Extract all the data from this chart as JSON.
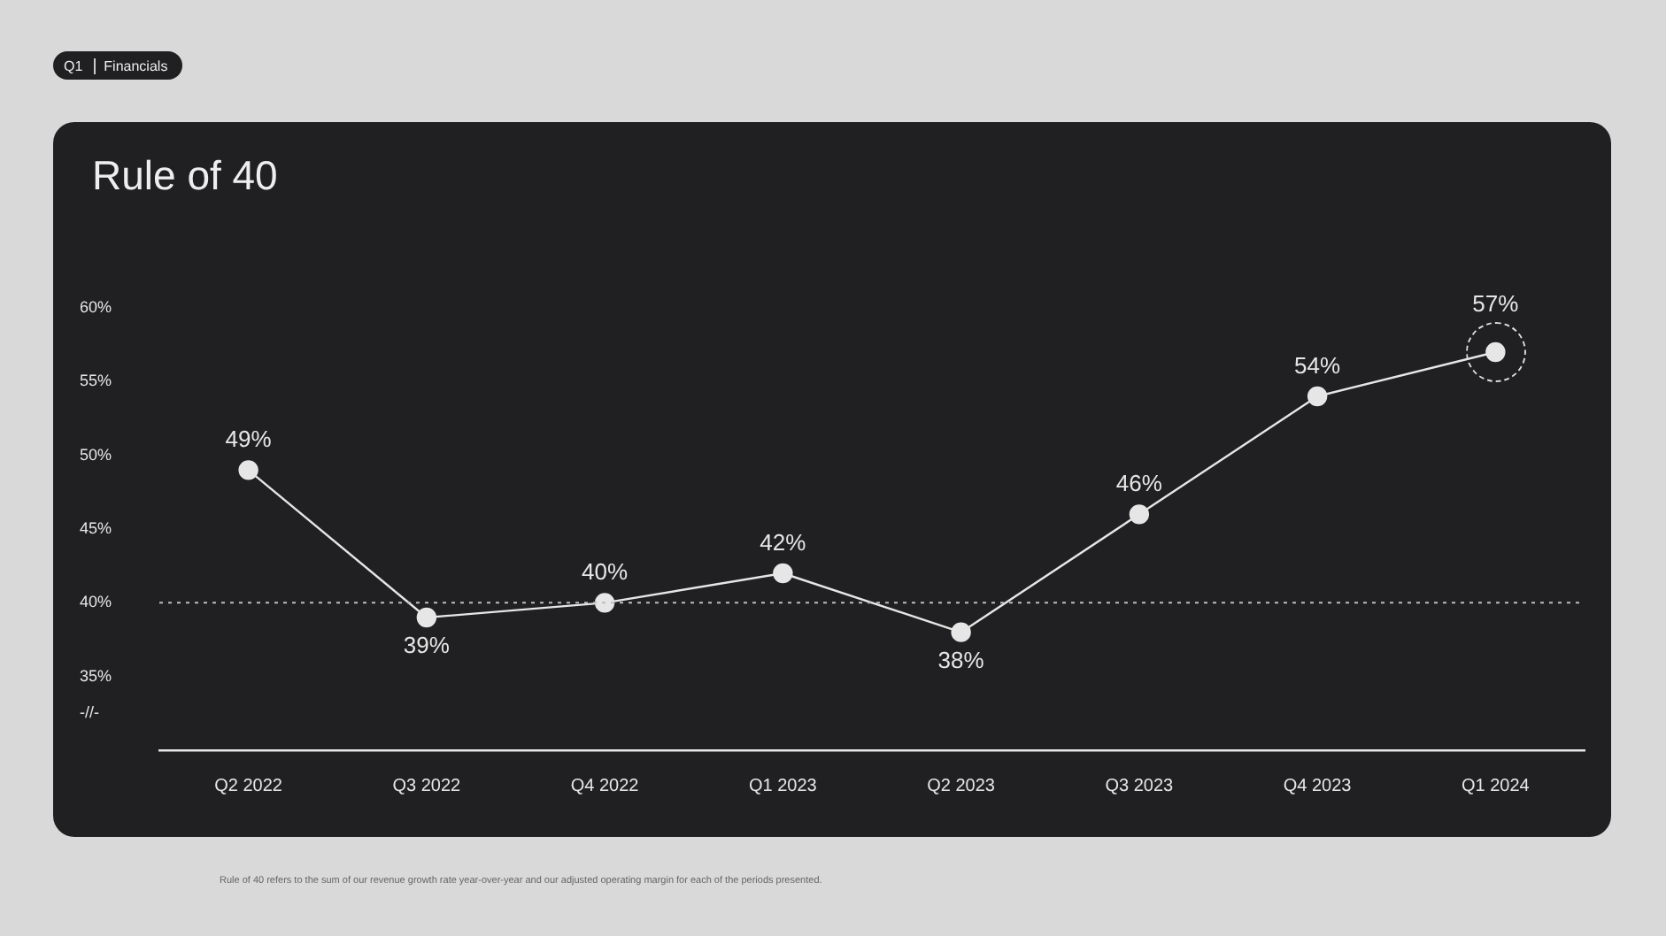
{
  "chart_data": {
    "type": "line",
    "title": "Rule of 40",
    "categories": [
      "Q2 2022",
      "Q3 2022",
      "Q4 2022",
      "Q1 2023",
      "Q2 2023",
      "Q3 2023",
      "Q4 2023",
      "Q1 2024"
    ],
    "series": [
      {
        "color": "#e6e6e6",
        "values": [
          49,
          39,
          40,
          42,
          38,
          46,
          54,
          57
        ],
        "value_labels": [
          "49%",
          "39%",
          "40%",
          "42%",
          "38%",
          "46%",
          "54%",
          "57%"
        ]
      }
    ],
    "ylim": [
      30,
      60
    ],
    "yticks": [
      {
        "value": 32.5,
        "label": "-//-"
      },
      {
        "value": 35,
        "label": "35%"
      },
      {
        "value": 40,
        "label": "40%"
      },
      {
        "value": 45,
        "label": "45%"
      },
      {
        "value": 50,
        "label": "50%"
      },
      {
        "value": 55,
        "label": "55%"
      },
      {
        "value": 60,
        "label": "60%"
      }
    ],
    "ref_lines": [
      {
        "axis": "y",
        "value": 40,
        "color": "#bdbdbd",
        "line_style": "dotted"
      }
    ],
    "grid": false,
    "legend": false,
    "marker": "circle",
    "line_style": "solid",
    "annotations": [
      "Q1",
      "Financials",
      "Rule of 40 refers to the sum of our revenue growth rate year-over-year and our adjusted operating margin for each of the periods presented."
    ]
  }
}
